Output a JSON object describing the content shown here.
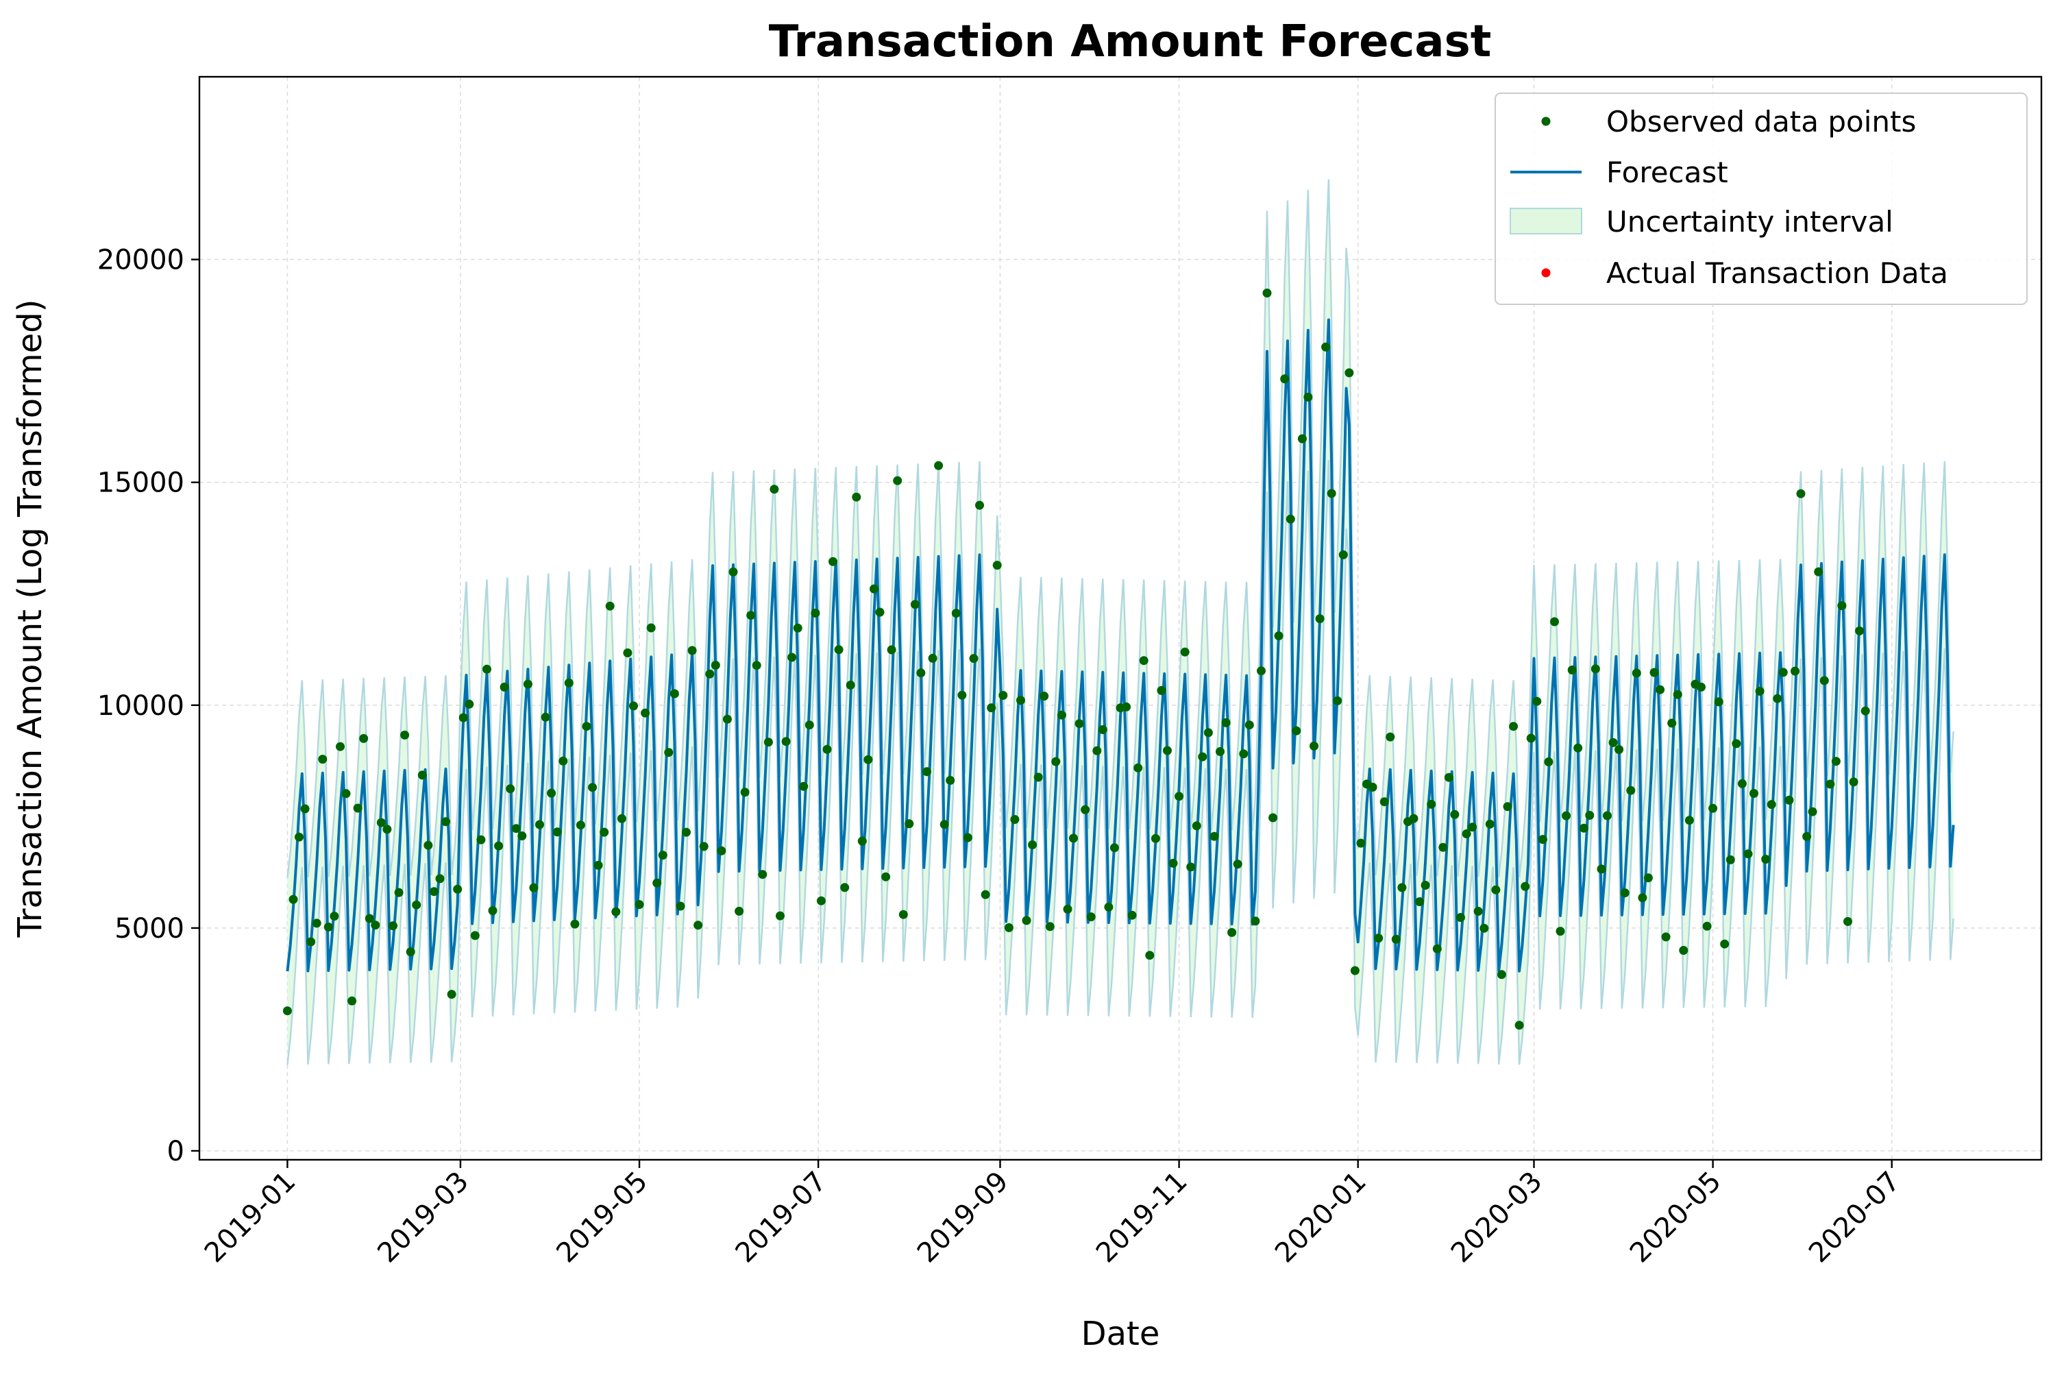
{
  "chart_data": {
    "type": "line",
    "title": "Transaction Amount Forecast",
    "xlabel": "Date",
    "ylabel": "Transaction Amount (Log Transformed)",
    "x_axis_type": "date",
    "xlim": [
      "2018-12-02",
      "2020-08-21"
    ],
    "ylim": [
      -200,
      24100
    ],
    "grid": true,
    "legend_position": "upper right",
    "x_ticks": [
      "2019-01",
      "2019-03",
      "2019-05",
      "2019-07",
      "2019-09",
      "2019-11",
      "2020-01",
      "2020-03",
      "2020-05",
      "2020-07"
    ],
    "x_tick_dates": [
      "2019-01-01",
      "2019-03-01",
      "2019-05-01",
      "2019-07-01",
      "2019-09-01",
      "2019-11-01",
      "2020-01-01",
      "2020-03-01",
      "2020-05-01",
      "2020-07-01"
    ],
    "y_ticks": [
      0,
      5000,
      10000,
      15000,
      20000
    ],
    "forecast_start": "2019-01-01",
    "forecast_end": "2020-07-22",
    "observed_end": "2020-06-22",
    "weekly_pattern_factors": [
      0.62,
      0.71,
      0.84,
      0.99,
      1.18,
      1.3,
      1.07
    ],
    "trend_anchors": [
      {
        "date": "2019-01-01",
        "value": 6500
      },
      {
        "date": "2019-02-28",
        "value": 6600
      },
      {
        "date": "2019-03-01",
        "value": 8200
      },
      {
        "date": "2019-05-20",
        "value": 8600
      },
      {
        "date": "2019-05-25",
        "value": 10100
      },
      {
        "date": "2019-08-31",
        "value": 10300
      },
      {
        "date": "2019-09-01",
        "value": 8300
      },
      {
        "date": "2019-11-27",
        "value": 8200
      },
      {
        "date": "2019-12-01",
        "value": 13800
      },
      {
        "date": "2019-12-28",
        "value": 14500
      },
      {
        "date": "2020-01-01",
        "value": 6600
      },
      {
        "date": "2020-02-28",
        "value": 6500
      },
      {
        "date": "2020-03-01",
        "value": 8500
      },
      {
        "date": "2020-05-24",
        "value": 8600
      },
      {
        "date": "2020-05-27",
        "value": 10100
      },
      {
        "date": "2020-07-22",
        "value": 10300
      }
    ],
    "uncertainty_halfwidth": 2100,
    "series": [
      {
        "name": "Observed data points",
        "kind": "scatter",
        "color": "#006400"
      },
      {
        "name": "Forecast",
        "kind": "line",
        "color": "#0072b2"
      },
      {
        "name": "Uncertainty interval",
        "kind": "band",
        "fill": "#e0f8e0",
        "edge": "#b0d8e0"
      },
      {
        "name": "Actual Transaction Data",
        "kind": "scatter",
        "color": "#ff0000"
      }
    ]
  }
}
